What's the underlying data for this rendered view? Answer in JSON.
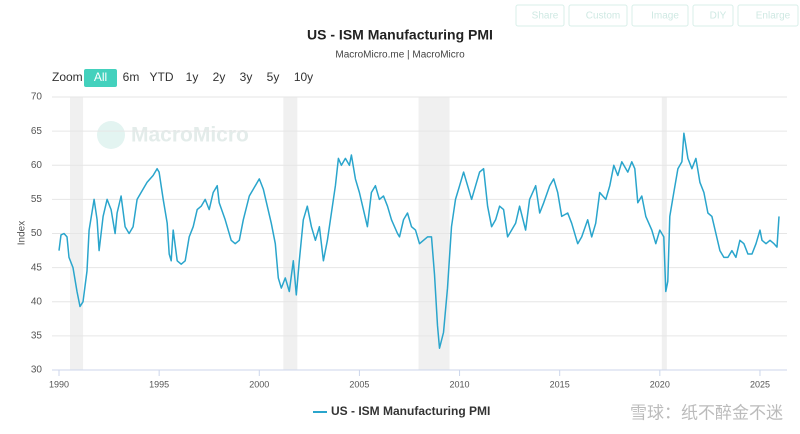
{
  "toolbar": [
    "Share",
    "Custom",
    "Image",
    "DIY",
    "Enlarge"
  ],
  "range_selector": {
    "label": "Zoom",
    "options": [
      "All",
      "6m",
      "YTD",
      "1y",
      "2y",
      "3y",
      "5y",
      "10y"
    ],
    "active": 0
  },
  "watermark": "MacroMicro",
  "footer_watermark": "雪球：纸不醉金不迷",
  "chart_data": {
    "type": "line",
    "title": "US - ISM Manufacturing PMI",
    "subtitle": "MacroMicro.me | MacroMicro",
    "y_label": "Index",
    "xlim": [
      1989.65,
      2026.35
    ],
    "xticks": [
      1990,
      1995,
      2000,
      2005,
      2010,
      2015,
      2020,
      2025
    ],
    "ylim": [
      30,
      70
    ],
    "yticks": [
      30,
      35,
      40,
      45,
      50,
      55,
      60,
      65,
      70
    ],
    "grid": true,
    "legend": "bottom",
    "recessions": [
      {
        "start": 1990.55,
        "end": 1991.2
      },
      {
        "start": 2001.2,
        "end": 2001.9
      },
      {
        "start": 2007.95,
        "end": 2009.5
      },
      {
        "start": 2020.1,
        "end": 2020.35
      }
    ],
    "x": [
      1990.0,
      1990.1,
      1990.25,
      1990.4,
      1990.5,
      1990.7,
      1990.9,
      1991.05,
      1991.2,
      1991.4,
      1991.5,
      1991.75,
      1991.9,
      1992.0,
      1992.2,
      1992.4,
      1992.6,
      1992.8,
      1992.9,
      1993.1,
      1993.3,
      1993.5,
      1993.7,
      1993.9,
      1994.1,
      1994.4,
      1994.7,
      1994.9,
      1995.0,
      1995.2,
      1995.4,
      1995.5,
      1995.6,
      1995.7,
      1995.9,
      1996.1,
      1996.3,
      1996.5,
      1996.7,
      1996.9,
      1997.1,
      1997.3,
      1997.5,
      1997.7,
      1997.9,
      1998.0,
      1998.3,
      1998.6,
      1998.8,
      1999.0,
      1999.2,
      1999.5,
      1999.8,
      2000.0,
      2000.2,
      2000.4,
      2000.6,
      2000.8,
      2000.95,
      2001.1,
      2001.3,
      2001.5,
      2001.7,
      2001.85,
      2002.0,
      2002.2,
      2002.4,
      2002.6,
      2002.8,
      2003.0,
      2003.2,
      2003.4,
      2003.6,
      2003.8,
      2003.95,
      2004.1,
      2004.3,
      2004.5,
      2004.6,
      2004.8,
      2005.0,
      2005.2,
      2005.4,
      2005.6,
      2005.8,
      2006.0,
      2006.2,
      2006.4,
      2006.6,
      2006.9,
      2007.0,
      2007.2,
      2007.4,
      2007.6,
      2007.8,
      2008.0,
      2008.2,
      2008.4,
      2008.6,
      2008.75,
      2008.9,
      2009.0,
      2009.2,
      2009.4,
      2009.6,
      2009.8,
      2010.0,
      2010.2,
      2010.4,
      2010.6,
      2010.8,
      2011.0,
      2011.2,
      2011.4,
      2011.6,
      2011.8,
      2012.0,
      2012.2,
      2012.4,
      2012.6,
      2012.8,
      2013.0,
      2013.3,
      2013.5,
      2013.8,
      2014.0,
      2014.2,
      2014.5,
      2014.7,
      2014.9,
      2015.1,
      2015.4,
      2015.6,
      2015.9,
      2016.1,
      2016.4,
      2016.6,
      2016.8,
      2017.0,
      2017.3,
      2017.5,
      2017.7,
      2017.9,
      2018.1,
      2018.4,
      2018.6,
      2018.75,
      2018.9,
      2019.1,
      2019.3,
      2019.6,
      2019.8,
      2020.0,
      2020.2,
      2020.3,
      2020.4,
      2020.5,
      2020.7,
      2020.9,
      2021.1,
      2021.2,
      2021.4,
      2021.6,
      2021.8,
      2022.0,
      2022.2,
      2022.4,
      2022.6,
      2022.8,
      2023.0,
      2023.2,
      2023.4,
      2023.6,
      2023.8,
      2024.0,
      2024.2,
      2024.4,
      2024.6,
      2024.8,
      2025.0,
      2025.1,
      2025.3,
      2025.5,
      2025.7,
      2025.85,
      2025.95
    ],
    "series": [
      {
        "name": "US - ISM Manufacturing PMI",
        "color": "#2aa5cc",
        "values": [
          47.5,
          49.8,
          50,
          49.5,
          46.5,
          45,
          41.5,
          39.3,
          40,
          44.5,
          50.5,
          55,
          52,
          47.5,
          52.5,
          55,
          53.5,
          50,
          53,
          55.5,
          51,
          50,
          51,
          55,
          56,
          57.5,
          58.5,
          59.5,
          59,
          55,
          51.5,
          47,
          46,
          50.5,
          46,
          45.5,
          46,
          49.5,
          51,
          53.5,
          54,
          55,
          53.5,
          56,
          57,
          54.5,
          52,
          49,
          48.5,
          49,
          52,
          55.5,
          57,
          58,
          56.5,
          54,
          51.5,
          48.5,
          43.5,
          42,
          43.5,
          41.5,
          46,
          41,
          46,
          52,
          54,
          51,
          49,
          51,
          46,
          49,
          53,
          57,
          61,
          60,
          61,
          60,
          61.5,
          58,
          56,
          53.5,
          51,
          56,
          57,
          55,
          55.5,
          54,
          52,
          50,
          49.5,
          52,
          53,
          51,
          50.5,
          48.5,
          49,
          49.5,
          49.5,
          44,
          36.5,
          33.2,
          35.5,
          42,
          51,
          55,
          57,
          59,
          57,
          55,
          57,
          59,
          59.5,
          54,
          51,
          52,
          54,
          53.5,
          49.5,
          50.5,
          51.5,
          54,
          50.5,
          55,
          57,
          53,
          54.5,
          57,
          58,
          56,
          52.5,
          53,
          51.5,
          48.5,
          49.5,
          52,
          49.5,
          51.5,
          56,
          55,
          57,
          60,
          58.5,
          60.5,
          59,
          60.5,
          59.5,
          54.5,
          55.5,
          52.5,
          50.5,
          48.5,
          50.5,
          49.5,
          41.5,
          43,
          52.5,
          56,
          59.5,
          60.5,
          64.7,
          61,
          59.5,
          61,
          57.5,
          56,
          53,
          52.5,
          50,
          47.5,
          46.5,
          46.5,
          47.5,
          46.5,
          49,
          48.5,
          47,
          47,
          48.5,
          50.5,
          49,
          48.5,
          49,
          48.5,
          48,
          52.5
        ]
      }
    ]
  }
}
